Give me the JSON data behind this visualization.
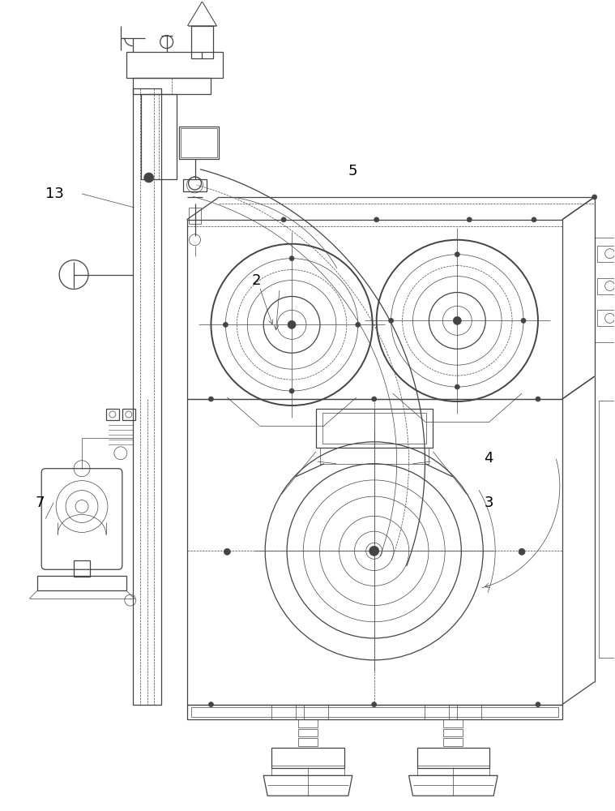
{
  "bg_color": "#ffffff",
  "line_color": "#444444",
  "thin": 0.5,
  "med": 0.9,
  "thick": 1.4,
  "label_fontsize": 13
}
